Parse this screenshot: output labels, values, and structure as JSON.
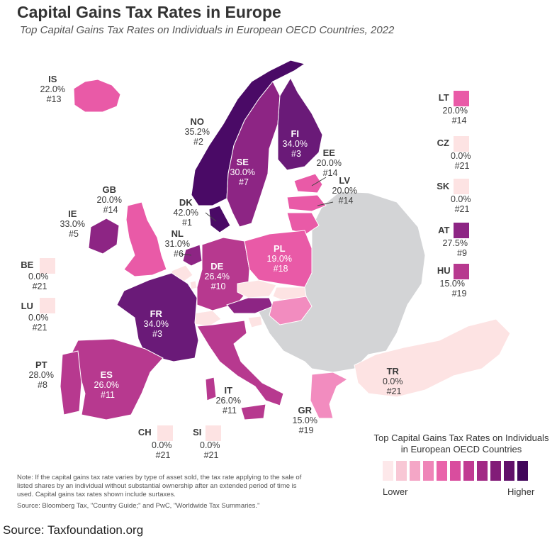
{
  "title": "Capital Gains Tax Rates in Europe",
  "subtitle": "Top Capital Gains Tax Rates on Individuals in European OECD Countries, 2022",
  "countries": [
    {
      "code": "IS",
      "rate": "22.0%",
      "rank": "#13"
    },
    {
      "code": "NO",
      "rate": "35.2%",
      "rank": "#2"
    },
    {
      "code": "SE",
      "rate": "30.0%",
      "rank": "#7"
    },
    {
      "code": "FI",
      "rate": "34.0%",
      "rank": "#3"
    },
    {
      "code": "EE",
      "rate": "20.0%",
      "rank": "#14"
    },
    {
      "code": "LV",
      "rate": "20.0%",
      "rank": "#14"
    },
    {
      "code": "GB",
      "rate": "20.0%",
      "rank": "#14"
    },
    {
      "code": "DK",
      "rate": "42.0%",
      "rank": "#1"
    },
    {
      "code": "IE",
      "rate": "33.0%",
      "rank": "#5"
    },
    {
      "code": "NL",
      "rate": "31.0%",
      "rank": "#6"
    },
    {
      "code": "PL",
      "rate": "19.0%",
      "rank": "#18"
    },
    {
      "code": "DE",
      "rate": "26.4%",
      "rank": "#10"
    },
    {
      "code": "BE",
      "rate": "0.0%",
      "rank": "#21"
    },
    {
      "code": "LU",
      "rate": "0.0%",
      "rank": "#21"
    },
    {
      "code": "FR",
      "rate": "34.0%",
      "rank": "#3"
    },
    {
      "code": "PT",
      "rate": "28.0%",
      "rank": "#8"
    },
    {
      "code": "ES",
      "rate": "26.0%",
      "rank": "#11"
    },
    {
      "code": "IT",
      "rate": "26.0%",
      "rank": "#11"
    },
    {
      "code": "TR",
      "rate": "0.0%",
      "rank": "#21"
    },
    {
      "code": "GR",
      "rate": "15.0%",
      "rank": "#19"
    },
    {
      "code": "CH",
      "rate": "0.0%",
      "rank": "#21"
    },
    {
      "code": "SI",
      "rate": "0.0%",
      "rank": "#21"
    },
    {
      "code": "LT",
      "rate": "20.0%",
      "rank": "#14"
    },
    {
      "code": "CZ",
      "rate": "0.0%",
      "rank": "#21"
    },
    {
      "code": "SK",
      "rate": "0.0%",
      "rank": "#21"
    },
    {
      "code": "AT",
      "rate": "27.5%",
      "rank": "#9"
    },
    {
      "code": "HU",
      "rate": "15.0%",
      "rank": "#19"
    }
  ],
  "colors": {
    "c0": "#fde3e3",
    "c15": "#f28cbf",
    "c20": "#e95aa7",
    "c26": "#b7398f",
    "c30": "#8d2584",
    "c34": "#6a1a78",
    "c42": "#4a0a66",
    "nonoecd": "#d3d4d6"
  },
  "legend": {
    "title_line1": "Top Capital Gains Tax Rates on Individuals",
    "title_line2": "in European OECD Countries",
    "low": "Lower",
    "high": "Higher",
    "swatches": [
      "#fde8ea",
      "#f8c7d5",
      "#f4a6c6",
      "#ef85b8",
      "#e964aa",
      "#d94d9e",
      "#c13a92",
      "#a22a85",
      "#821c78",
      "#61106a",
      "#42065b"
    ]
  },
  "note": "Note: If the capital gains tax rate varies by type of asset sold, the tax rate applying to the sale of listed shares by an individual without substantial ownership after an extended period of time is used. Capital gains tax rates shown include surtaxes.",
  "source_inner": "Source: Bloomberg Tax, \"Country Guide;\" and PwC, \"Worldwide Tax Summaries.\"",
  "source_outer": "Source: Taxfoundation.org"
}
